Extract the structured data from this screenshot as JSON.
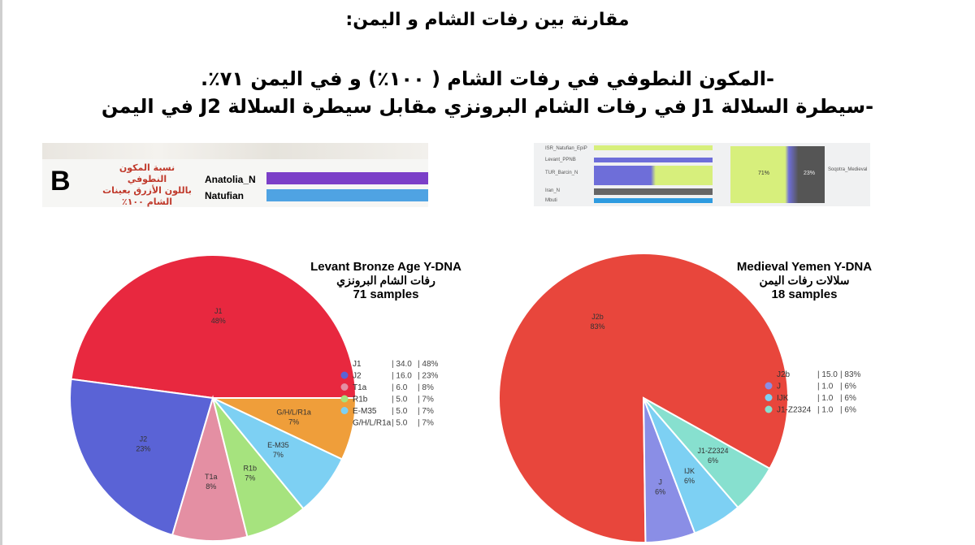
{
  "headings": {
    "title": "مقارنة بين رفات الشام و اليمن:",
    "line1": "-المكون النطوفي في رفات الشام ( ١٠٠٪) و في اليمن ٧١٪.",
    "line2": "-سيطرة السلالة J1 في رفات الشام البرونزي مقابل سيطرة السلالة J2 في اليمن"
  },
  "panel_b": {
    "letter": "B",
    "note_lines": [
      "نسبة المكون النطوفي",
      "باللون الأزرق بعينات",
      "الشام ١٠٠٪"
    ],
    "populations": [
      "Anatolia_N",
      "Natufian"
    ],
    "colors": {
      "anatolia": "#7b3fc8",
      "natufian": "#4fa3e3"
    }
  },
  "panel_right": {
    "row_labels": [
      "ISR_Natufian_EpiP",
      "Levant_PPNB",
      "TUR_Barcin_N",
      "Iran_N",
      "Mbuti"
    ],
    "pct_left": "71%",
    "pct_right": "23%",
    "side_label": "Soqotra_Medieval"
  },
  "chart_data": [
    {
      "type": "pie",
      "title": "Levant Bronze Age Y-DNA",
      "subtitle": "رفات الشام البرونزي",
      "samples": "71 samples",
      "slices": [
        {
          "label": "J1",
          "value": 34.0,
          "percent": "48%",
          "color": "#e8283f"
        },
        {
          "label": "J2",
          "value": 16.0,
          "percent": "23%",
          "color": "#5a63d6"
        },
        {
          "label": "T1a",
          "value": 6.0,
          "percent": "8%",
          "color": "#e48fa3"
        },
        {
          "label": "R1b",
          "value": 5.0,
          "percent": "7%",
          "color": "#a6e37e"
        },
        {
          "label": "E-M35",
          "value": 5.0,
          "percent": "7%",
          "color": "#7dd0f3"
        },
        {
          "label": "G/H/L/R1a",
          "value": 5.0,
          "percent": "7%",
          "color": "#ef9e3a"
        }
      ],
      "legend": [
        {
          "label": "J1",
          "value": "34.0",
          "percent": "48%"
        },
        {
          "label": "J2",
          "value": "16.0",
          "percent": "23%"
        },
        {
          "label": "T1a",
          "value": "6.0",
          "percent": "8%"
        },
        {
          "label": "R1b",
          "value": "5.0",
          "percent": "7%"
        },
        {
          "label": "E-M35",
          "value": "5.0",
          "percent": "7%"
        },
        {
          "label": "G/H/L/R1a",
          "value": "5.0",
          "percent": "7%"
        }
      ]
    },
    {
      "type": "pie",
      "title": "Medieval Yemen Y-DNA",
      "subtitle": "سلالات رفات اليمن",
      "samples": "18 samples",
      "slices": [
        {
          "label": "J2b",
          "value": 15.0,
          "percent": "83%",
          "color": "#e8463c"
        },
        {
          "label": "J",
          "value": 1.0,
          "percent": "6%",
          "color": "#8a8ee6"
        },
        {
          "label": "IJK",
          "value": 1.0,
          "percent": "6%",
          "color": "#7dd0f3"
        },
        {
          "label": "J1-Z2324",
          "value": 1.0,
          "percent": "6%",
          "color": "#87e0cf"
        }
      ],
      "legend": [
        {
          "label": "J2b",
          "value": "15.0",
          "percent": "83%"
        },
        {
          "label": "J",
          "value": "1.0",
          "percent": "6%"
        },
        {
          "label": "IJK",
          "value": "1.0",
          "percent": "6%"
        },
        {
          "label": "J1-Z2324",
          "value": "1.0",
          "percent": "6%"
        }
      ]
    }
  ]
}
